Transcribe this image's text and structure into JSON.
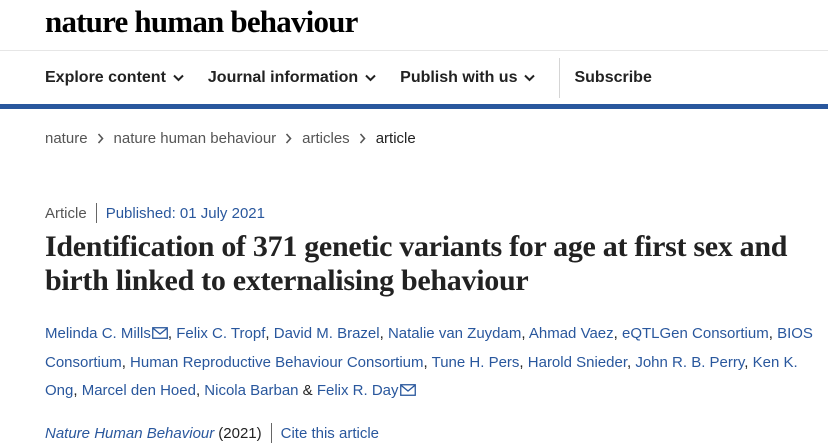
{
  "header": {
    "logo": "nature human behaviour"
  },
  "nav": {
    "items": [
      {
        "label": "Explore content",
        "icon": "chevron-down-icon"
      },
      {
        "label": "Journal information",
        "icon": "chevron-down-icon"
      },
      {
        "label": "Publish with us",
        "icon": "chevron-down-icon"
      }
    ],
    "subscribe": "Subscribe"
  },
  "colors": {
    "accent": "#29579d",
    "text": "#222222"
  },
  "breadcrumb": [
    "nature",
    "nature human behaviour",
    "articles",
    "article"
  ],
  "article": {
    "type": "Article",
    "published": "Published: 01 July 2021",
    "title": "Identification of 371 genetic variants for age at first sex and birth linked to externalising behaviour",
    "authors": [
      {
        "name": "Melinda C. Mills",
        "email": true
      },
      {
        "name": "Felix C. Tropf",
        "email": false
      },
      {
        "name": "David M. Brazel",
        "email": false
      },
      {
        "name": "Natalie van Zuydam",
        "email": false
      },
      {
        "name": "Ahmad Vaez",
        "email": false
      },
      {
        "name": "eQTLGen Consortium",
        "email": false
      },
      {
        "name": "BIOS Consortium",
        "email": false
      },
      {
        "name": "Human Reproductive Behaviour Consortium",
        "email": false
      },
      {
        "name": "Tune H. Pers",
        "email": false
      },
      {
        "name": "Harold Snieder",
        "email": false
      },
      {
        "name": "John R. B. Perry",
        "email": false
      },
      {
        "name": "Ken K. Ong",
        "email": false
      },
      {
        "name": "Marcel den Hoed",
        "email": false
      },
      {
        "name": "Nicola Barban",
        "email": false
      },
      {
        "name": "Felix R. Day",
        "email": true
      }
    ],
    "journal": "Nature Human Behaviour",
    "year": "(2021)",
    "cite": "Cite this article"
  }
}
